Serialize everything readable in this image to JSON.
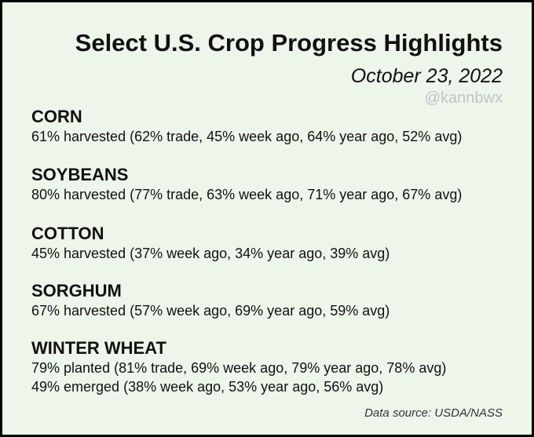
{
  "title": "Select U.S. Crop Progress Highlights",
  "date": "October 23, 2022",
  "handle": "@kannbwx",
  "crops": [
    {
      "name": "CORN",
      "lines": [
        "61% harvested (62% trade, 45% week ago, 64% year ago, 52% avg)"
      ]
    },
    {
      "name": "SOYBEANS",
      "lines": [
        "80% harvested (77% trade, 63% week ago, 71% year ago, 67% avg)"
      ]
    },
    {
      "name": "COTTON",
      "lines": [
        "45% harvested (37% week ago, 34% year ago, 39% avg)"
      ]
    },
    {
      "name": "SORGHUM",
      "lines": [
        "67% harvested (57% week ago, 69% year ago, 59% avg)"
      ]
    },
    {
      "name": "WINTER WHEAT",
      "lines": [
        "79% planted (81% trade, 69% week ago, 79% year ago, 78% avg)",
        "49% emerged (38% week ago, 53% year ago, 56% avg)"
      ]
    }
  ],
  "source": "Data source: USDA/NASS",
  "colors": {
    "background": "#eef5ea",
    "border": "#000000",
    "text": "#111111",
    "handle": "#c4c4c4"
  }
}
